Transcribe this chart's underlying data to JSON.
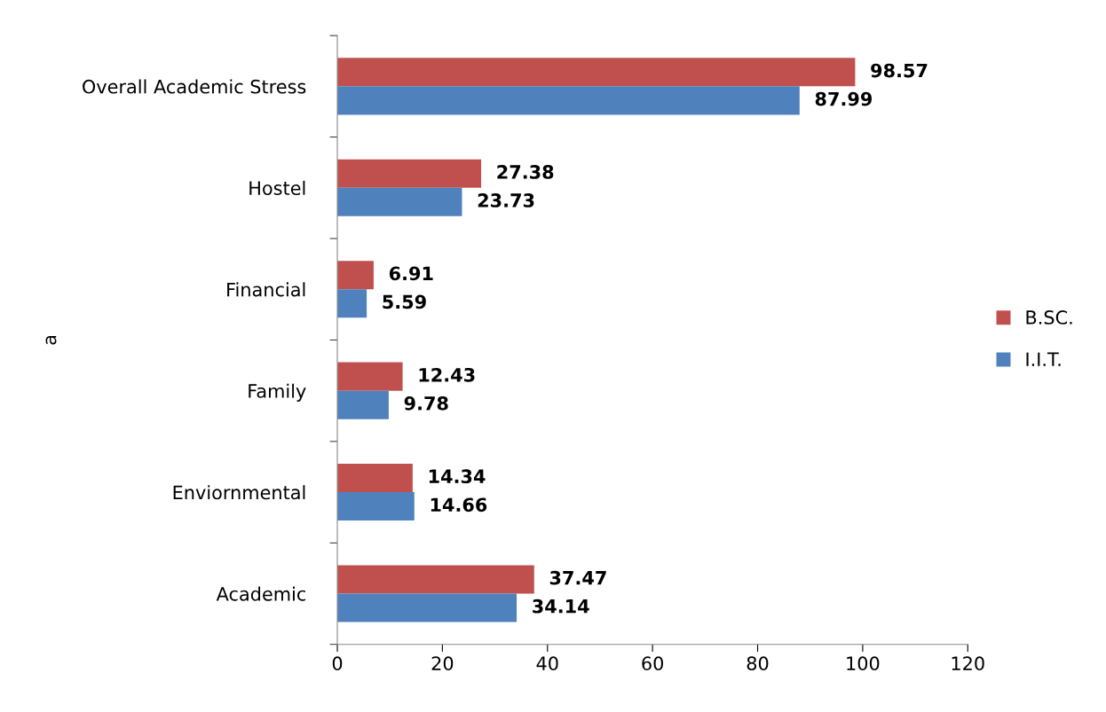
{
  "chart_data": {
    "type": "bar",
    "orientation": "horizontal",
    "ylabel": "a",
    "categories": [
      "Overall Academic Stress",
      "Hostel",
      "Financial",
      "Family",
      "Enviornmental",
      "Academic"
    ],
    "series": [
      {
        "name": "B.SC.",
        "color": "#c0504d",
        "values": [
          98.57,
          27.38,
          6.91,
          12.43,
          14.34,
          37.47
        ]
      },
      {
        "name": "I.I.T.",
        "color": "#4f81bd",
        "values": [
          87.99,
          23.73,
          5.59,
          9.78,
          14.66,
          34.14
        ]
      }
    ],
    "xlim": [
      0,
      120
    ],
    "xticks": [
      0,
      20,
      40,
      60,
      80,
      100,
      120
    ],
    "data_labels": true,
    "grid": false,
    "legend": "right"
  }
}
